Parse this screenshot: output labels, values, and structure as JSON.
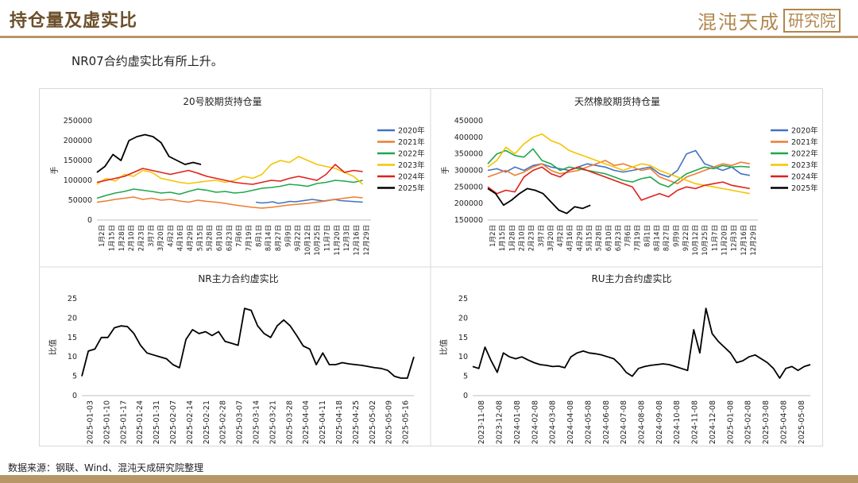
{
  "header": {
    "title": "持仓量及虚实比"
  },
  "logo": {
    "text": "混沌天成",
    "badge": "研究院"
  },
  "subtitle": "NR07合约虚实比有所上升。",
  "source": "数据来源：钢联、Wind、混沌天成研究院整理",
  "colors": {
    "accent": "#b89766",
    "title": "#6b4f2a",
    "s2020": "#4472c4",
    "s2021": "#ed7d31",
    "s2022": "#1fa84c",
    "s2023": "#f5c400",
    "s2024": "#e0201b",
    "s2025": "#000000"
  },
  "chart_data": [
    {
      "type": "line",
      "title": "20号胶期货持仓量",
      "ylabel": "手",
      "ylim": [
        0,
        250000
      ],
      "yticks": [
        "0",
        "50000",
        "100000",
        "150000",
        "200000",
        "250000"
      ],
      "xticks": [
        "1月2日",
        "1月15日",
        "1月28日",
        "2月10日",
        "2月23日",
        "3月7日",
        "3月20日",
        "4月2日",
        "4月16日",
        "4月29日",
        "5月15日",
        "5月28日",
        "6月10日",
        "6月23日",
        "7月6日",
        "7月19日",
        "8月1日",
        "8月14日",
        "8月27日",
        "9月9日",
        "9月22日",
        "10月12日",
        "10月25日",
        "11月7日",
        "11月20日",
        "12月3日",
        "12月16日",
        "12月29日"
      ],
      "series": [
        {
          "name": "2020年",
          "start": 0.58,
          "end": 0.97,
          "values": [
            45000,
            43000,
            44000,
            46000,
            42000,
            44000,
            47000,
            46000,
            48000,
            50000,
            52000,
            50000,
            48000,
            50000,
            52000,
            49000,
            48000,
            47000,
            46000,
            45000
          ]
        },
        {
          "name": "2021年",
          "start": 0,
          "end": 0.97,
          "values": [
            45000,
            48000,
            52000,
            55000,
            58000,
            52000,
            55000,
            50000,
            52000,
            48000,
            45000,
            50000,
            47000,
            45000,
            42000,
            38000,
            35000,
            32000,
            30000,
            32000,
            35000,
            38000,
            40000,
            42000,
            45000,
            48000,
            52000,
            55000,
            58000,
            56000
          ]
        },
        {
          "name": "2022年",
          "start": 0,
          "end": 0.97,
          "values": [
            55000,
            62000,
            68000,
            72000,
            78000,
            75000,
            72000,
            68000,
            70000,
            65000,
            72000,
            78000,
            75000,
            70000,
            72000,
            68000,
            70000,
            75000,
            80000,
            82000,
            85000,
            90000,
            88000,
            85000,
            92000,
            95000,
            100000,
            98000,
            95000,
            100000
          ]
        },
        {
          "name": "2023年",
          "start": 0,
          "end": 0.97,
          "values": [
            90000,
            105000,
            98000,
            115000,
            110000,
            125000,
            120000,
            105000,
            100000,
            95000,
            92000,
            95000,
            98000,
            100000,
            95000,
            100000,
            110000,
            105000,
            115000,
            140000,
            150000,
            145000,
            160000,
            150000,
            140000,
            135000,
            130000,
            120000,
            110000,
            90000
          ]
        },
        {
          "name": "2024年",
          "start": 0,
          "end": 0.97,
          "values": [
            95000,
            100000,
            105000,
            110000,
            120000,
            130000,
            125000,
            120000,
            115000,
            120000,
            125000,
            118000,
            110000,
            105000,
            100000,
            95000,
            92000,
            90000,
            95000,
            100000,
            98000,
            105000,
            110000,
            105000,
            100000,
            115000,
            140000,
            120000,
            125000,
            122000
          ]
        },
        {
          "name": "2025年",
          "start": 0,
          "end": 0.38,
          "values": [
            120000,
            135000,
            165000,
            150000,
            200000,
            210000,
            215000,
            210000,
            195000,
            160000,
            150000,
            140000,
            145000,
            140000
          ]
        }
      ],
      "legend": "right"
    },
    {
      "type": "line",
      "title": "天然橡胶期货持仓量",
      "ylabel": "手",
      "ylim": [
        150000,
        450000
      ],
      "yticks": [
        "150000",
        "200000",
        "250000",
        "300000",
        "350000",
        "400000",
        "450000"
      ],
      "xticks": [
        "1月2日",
        "1月15日",
        "1月28日",
        "2月10日",
        "2月23日",
        "3月7日",
        "3月20日",
        "4月2日",
        "4月16日",
        "4月29日",
        "5月15日",
        "5月28日",
        "6月10日",
        "6月23日",
        "7月6日",
        "7月19日",
        "8月1日",
        "8月14日",
        "8月27日",
        "9月9日",
        "9月22日",
        "10月12日",
        "10月25日",
        "11月7日",
        "11月20日",
        "12月3日",
        "12月16日",
        "12月29日"
      ],
      "series": [
        {
          "name": "2020年",
          "start": 0,
          "end": 0.97,
          "values": [
            300000,
            305000,
            295000,
            310000,
            300000,
            315000,
            320000,
            310000,
            305000,
            300000,
            310000,
            320000,
            315000,
            310000,
            300000,
            295000,
            300000,
            305000,
            310000,
            290000,
            280000,
            300000,
            350000,
            360000,
            320000,
            310000,
            300000,
            310000,
            290000,
            285000
          ]
        },
        {
          "name": "2021年",
          "start": 0,
          "end": 0.97,
          "values": [
            280000,
            290000,
            300000,
            285000,
            295000,
            310000,
            320000,
            300000,
            290000,
            295000,
            300000,
            310000,
            320000,
            330000,
            315000,
            320000,
            310000,
            300000,
            305000,
            280000,
            270000,
            260000,
            280000,
            290000,
            300000,
            310000,
            320000,
            315000,
            325000,
            320000
          ]
        },
        {
          "name": "2022年",
          "start": 0,
          "end": 0.97,
          "values": [
            320000,
            350000,
            360000,
            345000,
            340000,
            365000,
            330000,
            320000,
            300000,
            310000,
            305000,
            300000,
            295000,
            290000,
            280000,
            270000,
            265000,
            275000,
            280000,
            260000,
            250000,
            270000,
            290000,
            300000,
            310000,
            305000,
            315000,
            310000,
            312000,
            310000
          ]
        },
        {
          "name": "2023年",
          "start": 0,
          "end": 0.97,
          "values": [
            310000,
            330000,
            370000,
            350000,
            380000,
            400000,
            410000,
            390000,
            380000,
            360000,
            350000,
            340000,
            330000,
            320000,
            310000,
            300000,
            310000,
            320000,
            315000,
            300000,
            290000,
            280000,
            270000,
            260000,
            255000,
            250000,
            245000,
            240000,
            235000,
            230000
          ]
        },
        {
          "name": "2024年",
          "start": 0,
          "end": 0.97,
          "values": [
            250000,
            230000,
            240000,
            235000,
            280000,
            300000,
            310000,
            290000,
            280000,
            300000,
            310000,
            300000,
            290000,
            280000,
            270000,
            260000,
            250000,
            210000,
            220000,
            230000,
            220000,
            240000,
            250000,
            245000,
            255000,
            260000,
            265000,
            255000,
            250000,
            245000
          ]
        },
        {
          "name": "2025年",
          "start": 0,
          "end": 0.38,
          "values": [
            245000,
            230000,
            195000,
            210000,
            230000,
            245000,
            240000,
            230000,
            205000,
            180000,
            170000,
            190000,
            185000,
            195000
          ]
        }
      ],
      "legend": "right"
    },
    {
      "type": "line",
      "title": "NR主力合约虚实比",
      "ylabel": "比值",
      "ylim": [
        0,
        25
      ],
      "yticks": [
        "0",
        "5",
        "10",
        "15",
        "20",
        "25"
      ],
      "xticks": [
        "2025-01-03",
        "2025-01-10",
        "2025-01-17",
        "2025-01-24",
        "2025-01-31",
        "2025-02-07",
        "2025-02-14",
        "2025-02-21",
        "2025-02-28",
        "2025-03-07",
        "2025-03-14",
        "2025-03-21",
        "2025-03-28",
        "2025-04-04",
        "2025-04-11",
        "2025-04-18",
        "2025-04-25",
        "2025-05-02",
        "2025-05-09",
        "2025-05-16"
      ],
      "series": [
        {
          "name": "NR",
          "start": 0,
          "end": 1,
          "values": [
            5,
            11.5,
            12,
            15,
            15,
            17.5,
            18,
            17.8,
            16,
            13,
            11,
            10.5,
            10,
            9.5,
            8,
            7.2,
            14.5,
            17,
            16,
            16.5,
            15.5,
            16.5,
            14,
            13.5,
            13,
            22.5,
            22,
            18,
            16,
            15,
            18,
            19.5,
            18,
            15.5,
            12.8,
            12,
            8,
            11,
            8,
            8,
            8.5,
            8.2,
            8,
            7.8,
            7.5,
            7.2,
            7,
            6.5,
            5,
            4.5,
            4.5,
            10
          ]
        }
      ],
      "legend": "none"
    },
    {
      "type": "line",
      "title": "RU主力合约虚实比",
      "ylabel": "比值",
      "ylim": [
        0,
        25
      ],
      "yticks": [
        "0",
        "5",
        "10",
        "15",
        "20",
        "25"
      ],
      "xticks": [
        "2023-11-08",
        "2023-12-08",
        "2024-01-08",
        "2024-02-08",
        "2024-03-08",
        "2024-04-08",
        "2024-05-08",
        "2024-06-08",
        "2024-07-08",
        "2024-08-08",
        "2024-09-08",
        "2024-10-08",
        "2024-11-08",
        "2024-12-08",
        "2025-01-08",
        "2025-02-08",
        "2025-03-08",
        "2025-04-08",
        "2025-05-08"
      ],
      "series": [
        {
          "name": "RU",
          "start": 0,
          "end": 1,
          "values": [
            7.5,
            7,
            12.5,
            9,
            6,
            11,
            10,
            9.5,
            10,
            9.2,
            8.5,
            8,
            7.8,
            7.5,
            7.6,
            7.2,
            10,
            11,
            11.5,
            11,
            10.8,
            10.5,
            10,
            9.5,
            8,
            6,
            5,
            7,
            7.5,
            7.8,
            8,
            8.2,
            8,
            7.5,
            7,
            6.5,
            17,
            11,
            22.5,
            16,
            14,
            12.5,
            11,
            8.5,
            9,
            10,
            10.5,
            9.5,
            8.5,
            7,
            4.5,
            7,
            7.5,
            6.5,
            7.5,
            8
          ]
        }
      ],
      "legend": "none"
    }
  ]
}
